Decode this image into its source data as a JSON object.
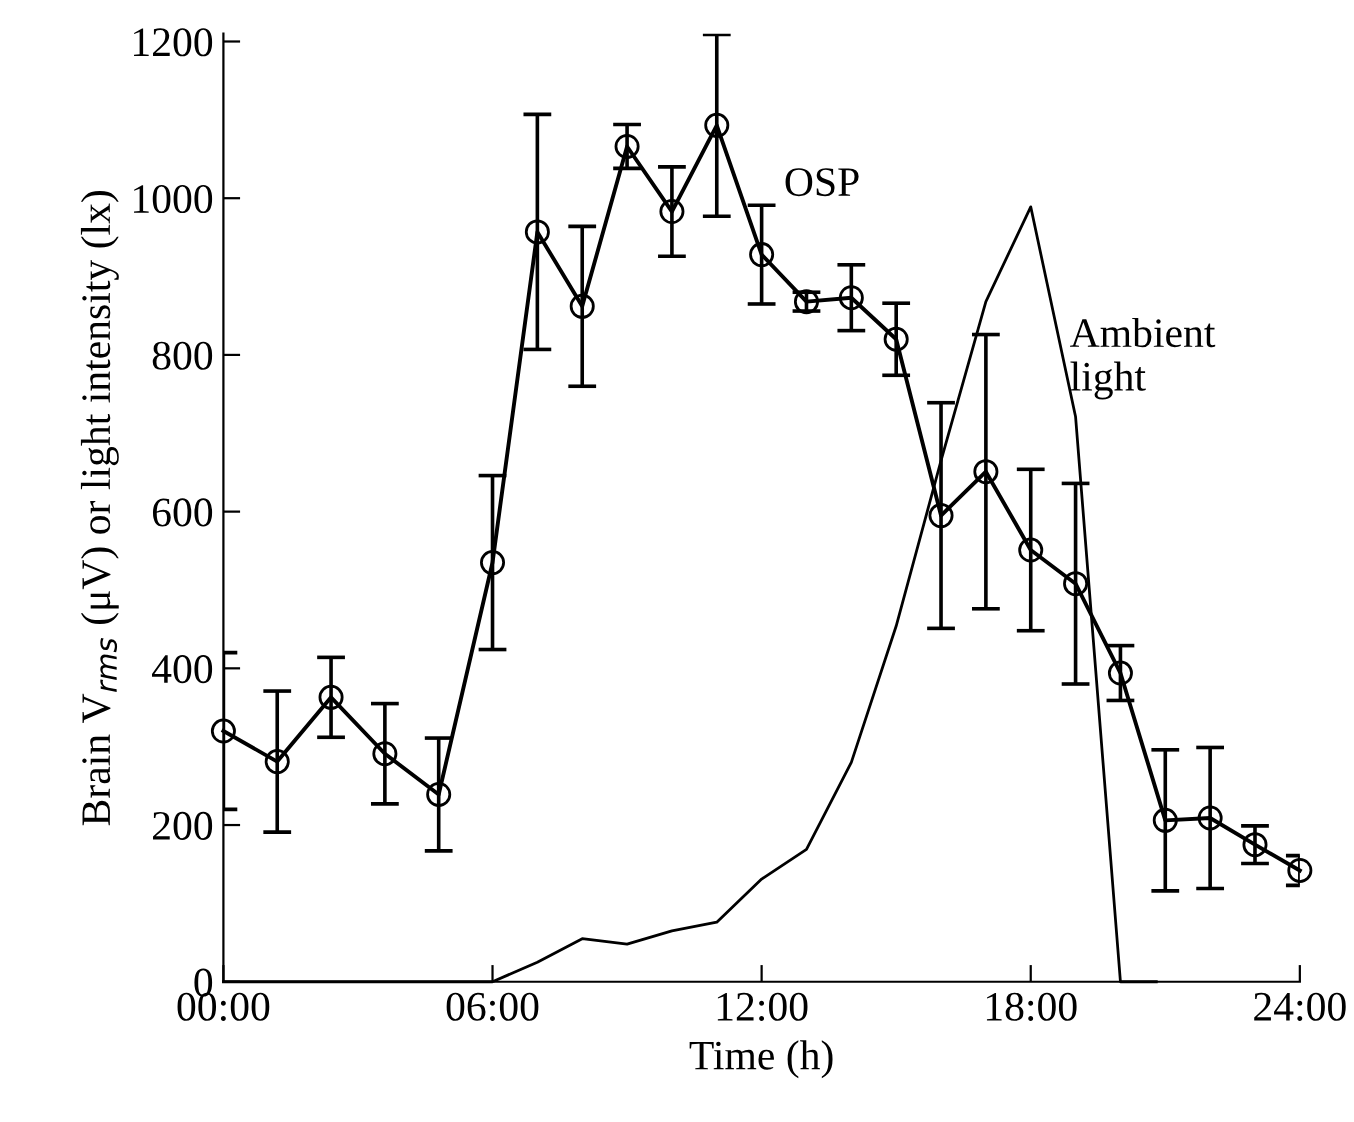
{
  "chart_data": {
    "type": "line",
    "xlabel": "Time (h)",
    "ylabel": "Brain V$_{rms}$ (μV) or light intensity (lx)",
    "xlim": [
      0,
      24
    ],
    "xticks": [
      {
        "value": 0,
        "label": "00:00"
      },
      {
        "value": 6,
        "label": "06:00"
      },
      {
        "value": 12,
        "label": "12:00"
      },
      {
        "value": 18,
        "label": "18:00"
      },
      {
        "value": 24,
        "label": "24:00"
      }
    ],
    "ylim": [
      0,
      1210
    ],
    "yticks": [
      0,
      200,
      400,
      600,
      800,
      1000,
      1200
    ],
    "grid": false,
    "legend": false,
    "series": [
      {
        "name": "OSP",
        "color": "#000000",
        "marker": "circle",
        "x": [
          0,
          1.2,
          2.4,
          3.6,
          4.8,
          6,
          7,
          8,
          9,
          10,
          11,
          12,
          13,
          14,
          15,
          16,
          17,
          18,
          19,
          20,
          21,
          22,
          23,
          24
        ],
        "values": [
          320,
          281,
          363,
          291,
          239,
          535,
          957,
          862,
          1066,
          983,
          1093,
          928,
          868,
          873,
          820,
          595,
          651,
          551,
          508,
          394,
          206,
          209,
          175,
          142
        ],
        "errors": [
          100,
          90,
          51,
          64,
          72,
          111,
          150,
          102,
          28,
          57,
          116,
          63,
          12,
          42,
          46,
          144,
          175,
          103,
          128,
          35,
          90,
          90,
          24,
          19
        ]
      },
      {
        "name": "Ambient\nlight",
        "color": "#000000",
        "marker": "none",
        "x": [
          0,
          6,
          7,
          8,
          9,
          10,
          11,
          12,
          13,
          14,
          15,
          16,
          17,
          18,
          19,
          20,
          20.8
        ],
        "values": [
          0,
          0,
          25,
          55,
          48,
          65,
          76,
          131,
          169,
          280,
          454,
          665,
          868,
          989,
          721,
          0,
          0
        ]
      }
    ]
  }
}
